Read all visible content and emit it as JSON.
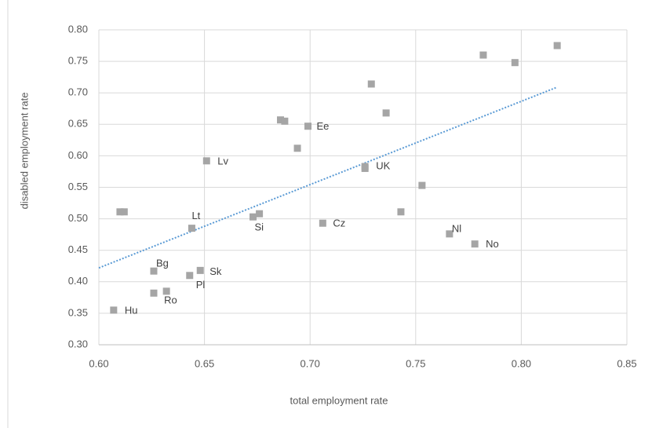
{
  "chart_data": {
    "type": "scatter",
    "xlabel": "total employment rate",
    "ylabel": "disabled employment rate",
    "color": "#a5a5a5",
    "x": [
      0.607,
      0.61,
      0.612,
      0.626,
      0.626,
      0.632,
      0.643,
      0.644,
      0.648,
      0.651,
      0.673,
      0.676,
      0.686,
      0.688,
      0.694,
      0.699,
      0.706,
      0.726,
      0.726,
      0.729,
      0.736,
      0.743,
      0.753,
      0.766,
      0.778,
      0.782,
      0.797,
      0.817
    ],
    "values": [
      0.355,
      0.511,
      0.511,
      0.417,
      0.382,
      0.385,
      0.41,
      0.485,
      0.418,
      0.592,
      0.503,
      0.508,
      0.657,
      0.655,
      0.612,
      0.647,
      0.493,
      0.583,
      0.58,
      0.714,
      0.668,
      0.511,
      0.553,
      0.476,
      0.46,
      0.76,
      0.748,
      0.775
    ],
    "labels": [
      "Hu",
      null,
      null,
      "Bg",
      null,
      "Ro",
      "Pl",
      "Lt",
      "Sk",
      "Lv",
      "Si",
      null,
      null,
      null,
      null,
      "Ee",
      "Cz",
      "UK",
      null,
      null,
      null,
      null,
      null,
      "Nl",
      "No",
      null,
      null,
      null
    ],
    "trendline": {
      "x": [
        0.6,
        0.817
      ],
      "y": [
        0.422,
        0.709
      ],
      "color": "#5b9bd5"
    },
    "xlim": [
      0.6,
      0.85
    ],
    "xticks": [
      {
        "value": 0.6,
        "label": "0.60"
      },
      {
        "value": 0.65,
        "label": "0.65"
      },
      {
        "value": 0.7,
        "label": "0.70"
      },
      {
        "value": 0.75,
        "label": "0.75"
      },
      {
        "value": 0.8,
        "label": "0.80"
      },
      {
        "value": 0.85,
        "label": "0.85"
      }
    ],
    "ylim": [
      0.3,
      0.8
    ],
    "yticks": [
      {
        "value": 0.3,
        "label": "0.30"
      },
      {
        "value": 0.35,
        "label": "0.35"
      },
      {
        "value": 0.4,
        "label": "0.40"
      },
      {
        "value": 0.45,
        "label": "0.45"
      },
      {
        "value": 0.5,
        "label": "0.50"
      },
      {
        "value": 0.55,
        "label": "0.55"
      },
      {
        "value": 0.6,
        "label": "0.60"
      },
      {
        "value": 0.65,
        "label": "0.65"
      },
      {
        "value": 0.7,
        "label": "0.70"
      },
      {
        "value": 0.75,
        "label": "0.75"
      },
      {
        "value": 0.8,
        "label": "0.80"
      }
    ],
    "grid": true
  }
}
